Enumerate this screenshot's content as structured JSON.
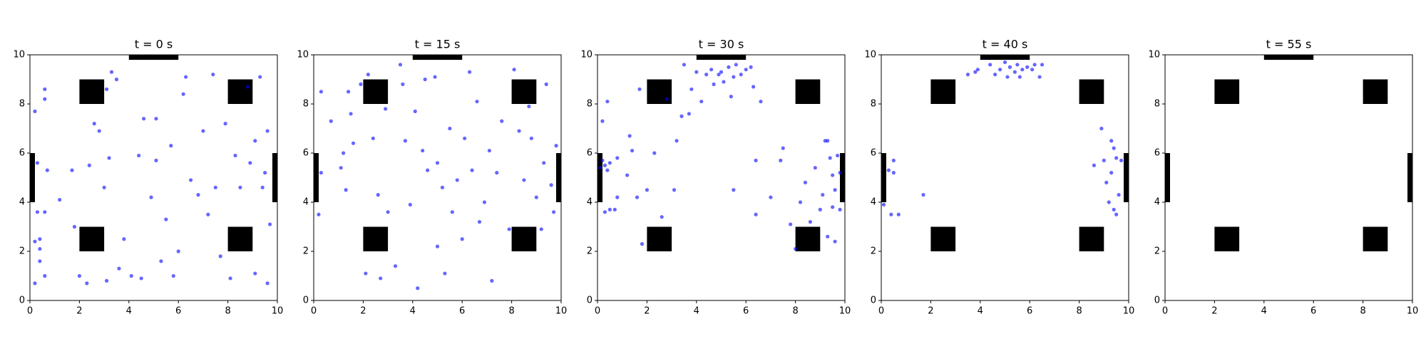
{
  "chart_data": [
    {
      "type": "scatter",
      "title": "t = 0 s",
      "color": "#0000ff",
      "xlim": [
        0,
        10
      ],
      "ylim": [
        0,
        10
      ],
      "xticks": [
        0,
        2,
        4,
        6,
        8,
        10
      ],
      "yticks": [
        0,
        2,
        4,
        6,
        8,
        10
      ],
      "obstacles": [
        [
          2,
          8,
          3,
          9
        ],
        [
          8,
          8,
          9,
          9
        ],
        [
          2,
          2,
          3,
          3
        ],
        [
          8,
          2,
          9,
          3
        ]
      ],
      "exits": [
        [
          4,
          10,
          6,
          10
        ],
        [
          0,
          4,
          0,
          6
        ],
        [
          10,
          4,
          10,
          6
        ]
      ],
      "x": [
        0.2,
        0.2,
        0.4,
        0.4,
        0.4,
        0.6,
        0.3,
        0.6,
        0.2,
        0.6,
        0.6,
        0.3,
        0.7,
        1.2,
        1.7,
        1.8,
        2.0,
        2.3,
        2.4,
        2.6,
        2.8,
        3.0,
        3.1,
        3.2,
        3.3,
        3.1,
        3.5,
        3.6,
        3.8,
        4.1,
        4.5,
        4.4,
        4.6,
        4.9,
        5.1,
        5.1,
        5.3,
        5.5,
        5.7,
        5.8,
        6.0,
        6.2,
        6.3,
        6.5,
        6.8,
        7.0,
        7.2,
        7.4,
        7.5,
        7.7,
        7.9,
        8.1,
        8.3,
        8.5,
        8.9,
        8.8,
        9.1,
        9.3,
        9.1,
        9.5,
        9.6,
        9.7,
        9.6,
        9.4
      ],
      "y": [
        0.7,
        2.4,
        2.5,
        2.1,
        1.6,
        1.0,
        3.6,
        3.6,
        7.7,
        8.2,
        8.6,
        5.6,
        5.3,
        4.1,
        5.3,
        3.0,
        1.0,
        0.7,
        5.5,
        7.2,
        6.9,
        4.6,
        0.8,
        5.8,
        9.3,
        8.6,
        9.0,
        1.3,
        2.5,
        1.0,
        0.9,
        5.9,
        7.4,
        4.2,
        7.4,
        5.7,
        1.6,
        3.3,
        6.3,
        1.0,
        2.0,
        8.4,
        9.1,
        4.9,
        4.3,
        6.9,
        3.5,
        9.2,
        4.6,
        1.8,
        7.2,
        0.9,
        5.9,
        4.6,
        5.6,
        8.7,
        1.1,
        9.1,
        6.5,
        5.2,
        0.7,
        3.1,
        6.9,
        4.6
      ]
    },
    {
      "type": "scatter",
      "title": "t = 15 s",
      "color": "#0000ff",
      "xlim": [
        0,
        10
      ],
      "ylim": [
        0,
        10
      ],
      "xticks": [
        0,
        2,
        4,
        6,
        8,
        10
      ],
      "yticks": [
        0,
        2,
        4,
        6,
        8,
        10
      ],
      "obstacles": [
        [
          2,
          8,
          3,
          9
        ],
        [
          8,
          8,
          9,
          9
        ],
        [
          2,
          2,
          3,
          3
        ],
        [
          8,
          2,
          9,
          3
        ]
      ],
      "exits": [
        [
          4,
          10,
          6,
          10
        ],
        [
          0,
          4,
          0,
          6
        ],
        [
          10,
          4,
          10,
          6
        ]
      ],
      "x": [
        0.3,
        0.3,
        0.2,
        0.7,
        1.1,
        1.2,
        1.3,
        1.4,
        1.5,
        1.6,
        1.9,
        2.2,
        2.1,
        2.4,
        2.6,
        2.7,
        2.9,
        3.0,
        3.3,
        3.5,
        3.6,
        3.7,
        3.9,
        4.1,
        4.2,
        4.4,
        4.5,
        4.6,
        4.9,
        5.0,
        5.0,
        5.2,
        5.3,
        5.5,
        5.6,
        5.8,
        6.0,
        6.1,
        6.3,
        6.4,
        6.6,
        6.7,
        6.9,
        7.1,
        7.2,
        7.4,
        7.6,
        7.9,
        8.1,
        8.3,
        8.5,
        8.7,
        8.8,
        9.0,
        9.2,
        9.3,
        9.4,
        9.6,
        9.7,
        9.8
      ],
      "y": [
        8.5,
        5.2,
        3.5,
        7.3,
        5.4,
        6.0,
        4.5,
        8.5,
        7.6,
        6.4,
        8.8,
        9.2,
        1.1,
        6.6,
        4.3,
        0.9,
        7.8,
        3.6,
        1.4,
        9.6,
        8.8,
        6.5,
        3.9,
        7.7,
        0.5,
        6.1,
        9.0,
        5.3,
        9.1,
        5.6,
        2.2,
        4.6,
        1.1,
        7.0,
        3.6,
        4.9,
        2.5,
        6.6,
        9.3,
        5.3,
        8.1,
        3.2,
        4.0,
        6.1,
        0.8,
        5.2,
        7.3,
        2.9,
        9.4,
        6.9,
        4.9,
        7.9,
        6.6,
        4.2,
        2.9,
        5.6,
        8.8,
        4.7,
        3.6,
        6.3
      ]
    },
    {
      "type": "scatter",
      "title": "t = 30 s",
      "color": "#0000ff",
      "xlim": [
        0,
        10
      ],
      "ylim": [
        0,
        10
      ],
      "xticks": [
        0,
        2,
        4,
        6,
        8,
        10
      ],
      "yticks": [
        0,
        2,
        4,
        6,
        8,
        10
      ],
      "obstacles": [
        [
          2,
          8,
          3,
          9
        ],
        [
          8,
          8,
          9,
          9
        ],
        [
          2,
          2,
          3,
          3
        ],
        [
          8,
          2,
          9,
          3
        ]
      ],
      "exits": [
        [
          4,
          10,
          6,
          10
        ],
        [
          0,
          4,
          0,
          6
        ],
        [
          10,
          4,
          10,
          6
        ]
      ],
      "x": [
        0.1,
        0.2,
        0.3,
        0.4,
        0.5,
        0.3,
        0.5,
        0.7,
        0.8,
        0.2,
        0.4,
        0.8,
        1.2,
        1.3,
        1.4,
        1.6,
        1.7,
        1.8,
        2.0,
        2.3,
        2.6,
        2.8,
        3.1,
        3.2,
        3.4,
        3.5,
        3.7,
        3.8,
        4.0,
        4.2,
        4.4,
        4.6,
        4.7,
        4.9,
        5.0,
        5.1,
        5.3,
        5.5,
        5.6,
        5.8,
        6.0,
        6.2,
        6.3,
        5.4,
        6.4,
        5.5,
        6.4,
        6.6,
        7.0,
        7.4,
        7.5,
        7.8,
        8.0,
        8.2,
        8.4,
        8.6,
        8.8,
        9.0,
        9.1,
        9.2,
        9.3,
        9.4,
        9.5,
        9.6,
        9.7,
        9.8,
        9.5,
        9.3,
        9.6,
        9.8
      ],
      "y": [
        5.4,
        5.7,
        5.5,
        5.3,
        5.6,
        3.6,
        3.7,
        3.7,
        4.2,
        7.3,
        8.1,
        5.8,
        5.1,
        6.7,
        6.1,
        4.2,
        8.6,
        2.3,
        4.5,
        6.0,
        3.4,
        8.2,
        4.5,
        6.5,
        7.5,
        9.6,
        7.6,
        8.6,
        9.3,
        8.1,
        9.2,
        9.4,
        8.8,
        9.2,
        9.3,
        8.9,
        9.5,
        9.1,
        9.6,
        9.2,
        9.4,
        9.5,
        8.7,
        8.3,
        5.7,
        4.5,
        3.5,
        8.1,
        4.2,
        5.7,
        6.2,
        3.1,
        2.1,
        4.0,
        4.8,
        3.2,
        5.4,
        3.7,
        4.3,
        6.5,
        6.5,
        5.8,
        5.1,
        4.5,
        5.9,
        5.2,
        3.8,
        2.6,
        2.4,
        3.7
      ]
    },
    {
      "type": "scatter",
      "title": "t = 40 s",
      "color": "#0000ff",
      "xlim": [
        0,
        10
      ],
      "ylim": [
        0,
        10
      ],
      "xticks": [
        0,
        2,
        4,
        6,
        8,
        10
      ],
      "yticks": [
        0,
        2,
        4,
        6,
        8,
        10
      ],
      "obstacles": [
        [
          2,
          8,
          3,
          9
        ],
        [
          8,
          8,
          9,
          9
        ],
        [
          2,
          2,
          3,
          3
        ],
        [
          8,
          2,
          9,
          3
        ]
      ],
      "exits": [
        [
          4,
          10,
          6,
          10
        ],
        [
          0,
          4,
          0,
          6
        ],
        [
          10,
          4,
          10,
          6
        ]
      ],
      "x": [
        0.1,
        0.3,
        0.5,
        0.5,
        0.4,
        0.7,
        1.7,
        3.5,
        3.8,
        3.9,
        4.4,
        4.6,
        4.8,
        5.0,
        5.1,
        5.2,
        5.4,
        5.5,
        5.7,
        5.9,
        6.1,
        6.2,
        6.4,
        6.5,
        5.6,
        8.6,
        8.9,
        9.0,
        9.1,
        9.2,
        9.3,
        9.4,
        9.5,
        9.6,
        9.4,
        9.5,
        9.7,
        9.3
      ],
      "y": [
        3.9,
        5.3,
        5.7,
        5.2,
        3.5,
        3.5,
        4.3,
        9.2,
        9.3,
        9.4,
        9.6,
        9.2,
        9.4,
        9.7,
        9.1,
        9.5,
        9.3,
        9.6,
        9.4,
        9.5,
        9.4,
        9.6,
        9.1,
        9.6,
        9.1,
        5.5,
        7.0,
        5.7,
        4.8,
        4.0,
        6.5,
        6.2,
        5.8,
        4.3,
        3.7,
        3.5,
        5.7,
        5.2
      ]
    },
    {
      "type": "scatter",
      "title": "t = 55 s",
      "color": "#0000ff",
      "xlim": [
        0,
        10
      ],
      "ylim": [
        0,
        10
      ],
      "xticks": [
        0,
        2,
        4,
        6,
        8,
        10
      ],
      "yticks": [
        0,
        2,
        4,
        6,
        8,
        10
      ],
      "obstacles": [
        [
          2,
          8,
          3,
          9
        ],
        [
          8,
          8,
          9,
          9
        ],
        [
          2,
          2,
          3,
          3
        ],
        [
          8,
          2,
          9,
          3
        ]
      ],
      "exits": [
        [
          4,
          10,
          6,
          10
        ],
        [
          0,
          4,
          0,
          6
        ],
        [
          10,
          4,
          10,
          6
        ]
      ],
      "x": [],
      "y": []
    }
  ]
}
